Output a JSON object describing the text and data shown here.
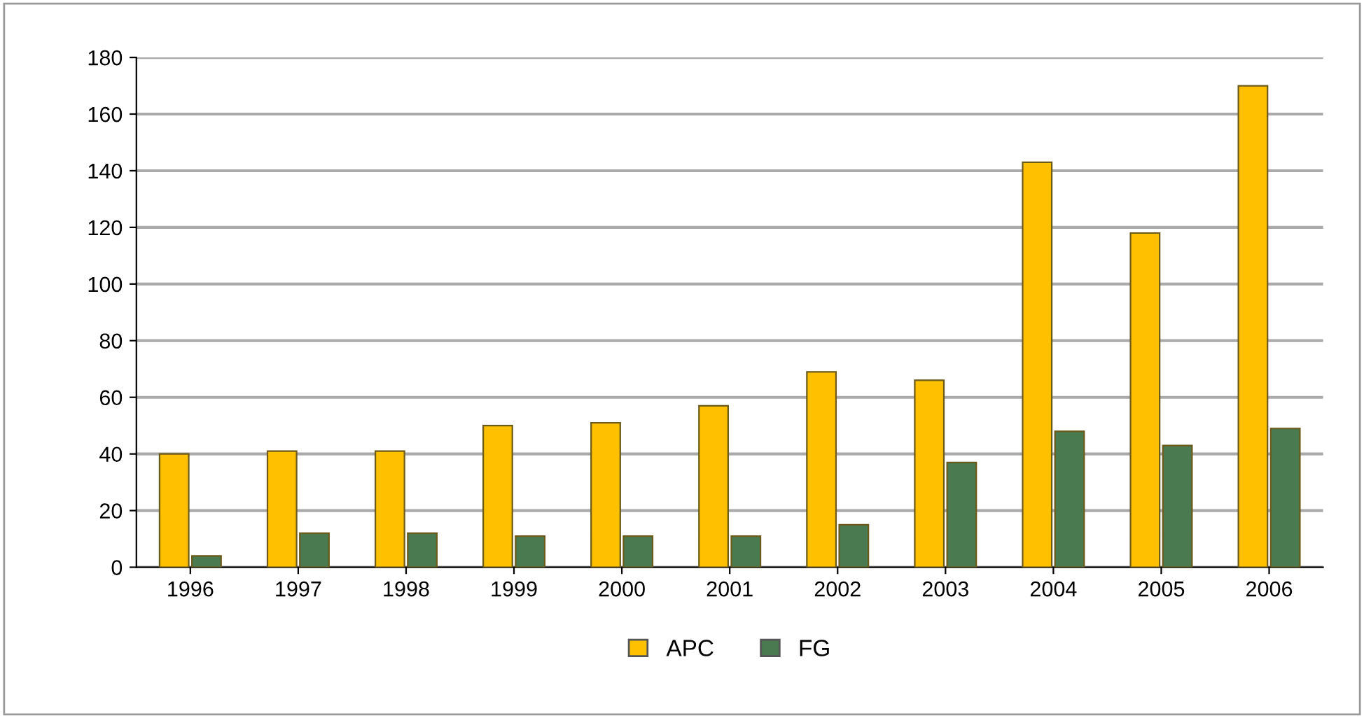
{
  "chart_data": {
    "type": "bar",
    "categories": [
      "1996",
      "1997",
      "1998",
      "1999",
      "2000",
      "2001",
      "2002",
      "2003",
      "2004",
      "2005",
      "2006"
    ],
    "series": [
      {
        "name": "APC",
        "color": "#ffc000",
        "values": [
          40,
          41,
          41,
          50,
          51,
          57,
          69,
          66,
          143,
          118,
          170
        ]
      },
      {
        "name": "FG",
        "color": "#4a7a50",
        "values": [
          4,
          12,
          12,
          11,
          11,
          11,
          15,
          37,
          48,
          43,
          49
        ]
      }
    ],
    "ylim": [
      0,
      180
    ],
    "yticks": [
      0,
      20,
      40,
      60,
      80,
      100,
      120,
      140,
      160,
      180
    ],
    "grid": "y",
    "legend": "bottom"
  }
}
